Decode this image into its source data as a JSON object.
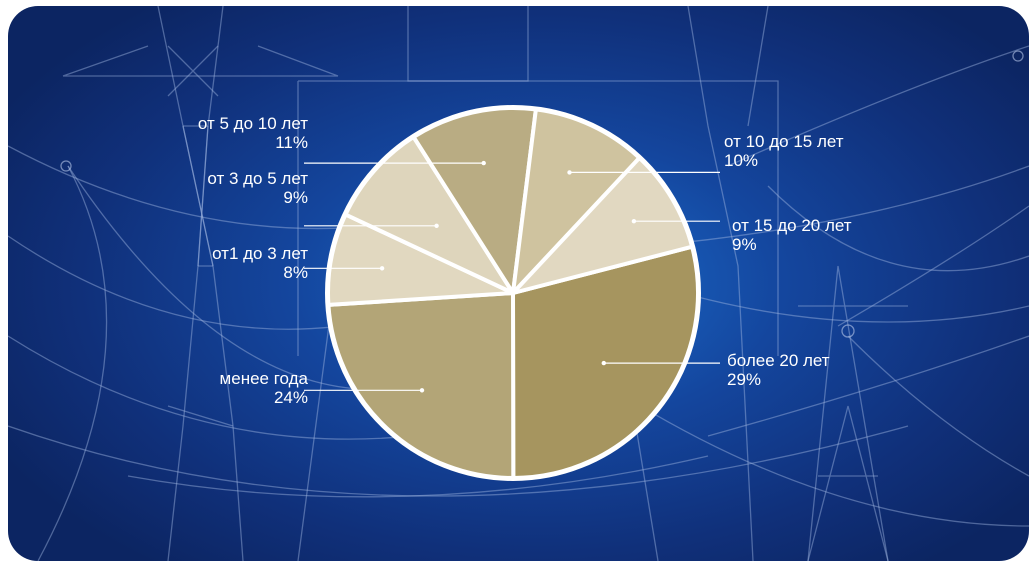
{
  "chart_data": {
    "type": "pie",
    "slices": [
      {
        "label": "более 20 лет",
        "value": 29,
        "value_text": "29%",
        "color": "#a6955f",
        "side": "right"
      },
      {
        "label": "менее года",
        "value": 24,
        "value_text": "24%",
        "color": "#b3a577",
        "side": "left"
      },
      {
        "label": "от1 до 3 лет",
        "value": 8,
        "value_text": "8%",
        "color": "#e1d8c0",
        "side": "left"
      },
      {
        "label": "от 3 до 5 лет",
        "value": 9,
        "value_text": "9%",
        "color": "#ded5bc",
        "side": "left"
      },
      {
        "label": "от 5 до 10 лет",
        "value": 11,
        "value_text": "11%",
        "color": "#b9ac83",
        "side": "left"
      },
      {
        "label": "от 10 до 15 лет",
        "value": 10,
        "value_text": "10%",
        "color": "#cfc39f",
        "side": "right"
      },
      {
        "label": "от 15 до 20 лет",
        "value": 9,
        "value_text": "9%",
        "color": "#e1d8c1",
        "side": "right"
      }
    ],
    "background_color": "#14469e",
    "outline_color": "#ffffff",
    "leader_line_color": "#ffffff"
  }
}
